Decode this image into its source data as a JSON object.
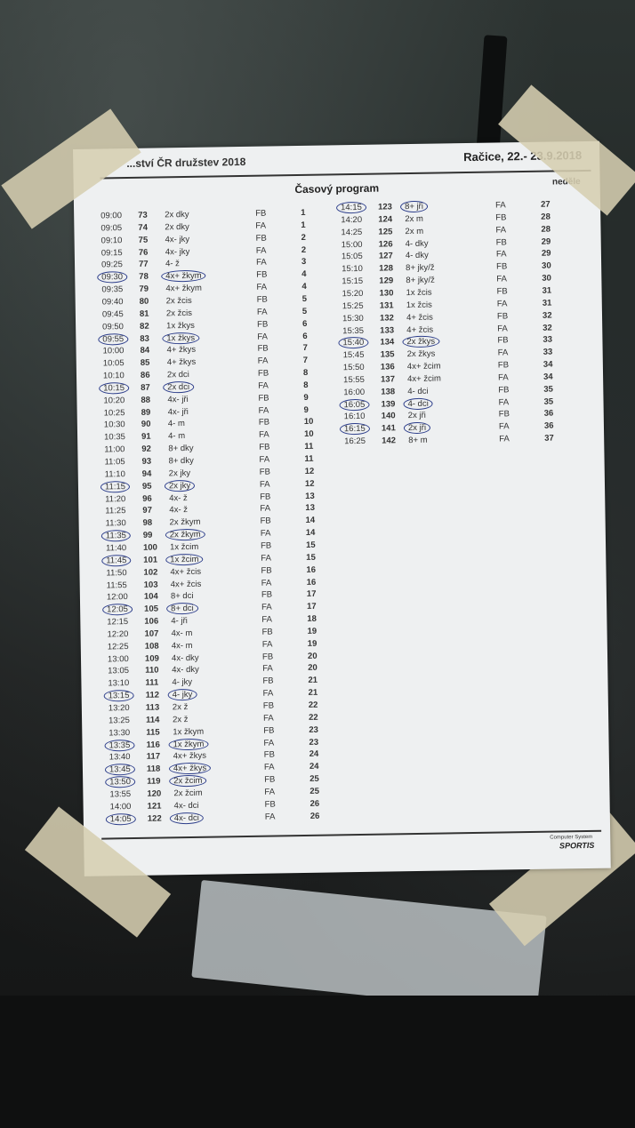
{
  "header": {
    "left": "...ství ČR družstev 2018",
    "right": "Račice, 22.- 23.9.2018"
  },
  "title": "Časový program",
  "day": "neděle",
  "footer": {
    "line1": "Computer System",
    "logo": "SPORTIS"
  },
  "mark_color": "#2c3d8a",
  "left_rows": [
    {
      "time": "09:00",
      "no": "73",
      "event": "2x dky",
      "final": "FB",
      "heat": "1",
      "circled": false
    },
    {
      "time": "09:05",
      "no": "74",
      "event": "2x dky",
      "final": "FA",
      "heat": "1",
      "circled": false
    },
    {
      "time": "09:10",
      "no": "75",
      "event": "4x- jky",
      "final": "FB",
      "heat": "2",
      "circled": false
    },
    {
      "time": "09:15",
      "no": "76",
      "event": "4x- jky",
      "final": "FA",
      "heat": "2",
      "circled": false
    },
    {
      "time": "09:25",
      "no": "77",
      "event": "4- ž",
      "final": "FA",
      "heat": "3",
      "circled": false
    },
    {
      "time": "09:30",
      "no": "78",
      "event": "4x+ žkym",
      "final": "FB",
      "heat": "4",
      "circled": true
    },
    {
      "time": "09:35",
      "no": "79",
      "event": "4x+ žkym",
      "final": "FA",
      "heat": "4",
      "circled": false
    },
    {
      "time": "09:40",
      "no": "80",
      "event": "2x žcis",
      "final": "FB",
      "heat": "5",
      "circled": false
    },
    {
      "time": "09:45",
      "no": "81",
      "event": "2x žcis",
      "final": "FA",
      "heat": "5",
      "circled": false
    },
    {
      "time": "09:50",
      "no": "82",
      "event": "1x žkys",
      "final": "FB",
      "heat": "6",
      "circled": false
    },
    {
      "time": "09:55",
      "no": "83",
      "event": "1x žkys",
      "final": "FA",
      "heat": "6",
      "circled": true
    },
    {
      "time": "10:00",
      "no": "84",
      "event": "4+ žkys",
      "final": "FB",
      "heat": "7",
      "circled": false
    },
    {
      "time": "10:05",
      "no": "85",
      "event": "4+ žkys",
      "final": "FA",
      "heat": "7",
      "circled": false
    },
    {
      "time": "10:10",
      "no": "86",
      "event": "2x dci",
      "final": "FB",
      "heat": "8",
      "circled": false
    },
    {
      "time": "10:15",
      "no": "87",
      "event": "2x dci",
      "final": "FA",
      "heat": "8",
      "circled": true
    },
    {
      "time": "10:20",
      "no": "88",
      "event": "4x- jři",
      "final": "FB",
      "heat": "9",
      "circled": false
    },
    {
      "time": "10:25",
      "no": "89",
      "event": "4x- jři",
      "final": "FA",
      "heat": "9",
      "circled": false
    },
    {
      "time": "10:30",
      "no": "90",
      "event": "4- m",
      "final": "FB",
      "heat": "10",
      "circled": false
    },
    {
      "time": "10:35",
      "no": "91",
      "event": "4- m",
      "final": "FA",
      "heat": "10",
      "circled": false
    },
    {
      "time": "11:00",
      "no": "92",
      "event": "8+ dky",
      "final": "FB",
      "heat": "11",
      "circled": false
    },
    {
      "time": "11:05",
      "no": "93",
      "event": "8+ dky",
      "final": "FA",
      "heat": "11",
      "circled": false
    },
    {
      "time": "11:10",
      "no": "94",
      "event": "2x jky",
      "final": "FB",
      "heat": "12",
      "circled": false
    },
    {
      "time": "11:15",
      "no": "95",
      "event": "2x jky",
      "final": "FA",
      "heat": "12",
      "circled": true
    },
    {
      "time": "11:20",
      "no": "96",
      "event": "4x- ž",
      "final": "FB",
      "heat": "13",
      "circled": false
    },
    {
      "time": "11:25",
      "no": "97",
      "event": "4x- ž",
      "final": "FA",
      "heat": "13",
      "circled": false
    },
    {
      "time": "11:30",
      "no": "98",
      "event": "2x žkym",
      "final": "FB",
      "heat": "14",
      "circled": false
    },
    {
      "time": "11:35",
      "no": "99",
      "event": "2x žkym",
      "final": "FA",
      "heat": "14",
      "circled": true
    },
    {
      "time": "11:40",
      "no": "100",
      "event": "1x žcim",
      "final": "FB",
      "heat": "15",
      "circled": false
    },
    {
      "time": "11:45",
      "no": "101",
      "event": "1x žcim",
      "final": "FA",
      "heat": "15",
      "circled": true
    },
    {
      "time": "11:50",
      "no": "102",
      "event": "4x+ žcis",
      "final": "FB",
      "heat": "16",
      "circled": false
    },
    {
      "time": "11:55",
      "no": "103",
      "event": "4x+ žcis",
      "final": "FA",
      "heat": "16",
      "circled": false
    },
    {
      "time": "12:00",
      "no": "104",
      "event": "8+ dci",
      "final": "FB",
      "heat": "17",
      "circled": false
    },
    {
      "time": "12:05",
      "no": "105",
      "event": "8+ dci",
      "final": "FA",
      "heat": "17",
      "circled": true
    },
    {
      "time": "12:15",
      "no": "106",
      "event": "4- jři",
      "final": "FA",
      "heat": "18",
      "circled": false
    },
    {
      "time": "12:20",
      "no": "107",
      "event": "4x- m",
      "final": "FB",
      "heat": "19",
      "circled": false
    },
    {
      "time": "12:25",
      "no": "108",
      "event": "4x- m",
      "final": "FA",
      "heat": "19",
      "circled": false
    },
    {
      "time": "13:00",
      "no": "109",
      "event": "4x- dky",
      "final": "FB",
      "heat": "20",
      "circled": false
    },
    {
      "time": "13:05",
      "no": "110",
      "event": "4x- dky",
      "final": "FA",
      "heat": "20",
      "circled": false
    },
    {
      "time": "13:10",
      "no": "111",
      "event": "4- jky",
      "final": "FB",
      "heat": "21",
      "circled": false
    },
    {
      "time": "13:15",
      "no": "112",
      "event": "4- jky",
      "final": "FA",
      "heat": "21",
      "circled": true
    },
    {
      "time": "13:20",
      "no": "113",
      "event": "2x ž",
      "final": "FB",
      "heat": "22",
      "circled": false
    },
    {
      "time": "13:25",
      "no": "114",
      "event": "2x ž",
      "final": "FA",
      "heat": "22",
      "circled": false
    },
    {
      "time": "13:30",
      "no": "115",
      "event": "1x žkym",
      "final": "FB",
      "heat": "23",
      "circled": false
    },
    {
      "time": "13:35",
      "no": "116",
      "event": "1x žkym",
      "final": "FA",
      "heat": "23",
      "circled": true
    },
    {
      "time": "13:40",
      "no": "117",
      "event": "4x+ žkys",
      "final": "FB",
      "heat": "24",
      "circled": false
    },
    {
      "time": "13:45",
      "no": "118",
      "event": "4x+ žkys",
      "final": "FA",
      "heat": "24",
      "circled": true
    },
    {
      "time": "13:50",
      "no": "119",
      "event": "2x žcim",
      "final": "FB",
      "heat": "25",
      "circled": true
    },
    {
      "time": "13:55",
      "no": "120",
      "event": "2x žcim",
      "final": "FA",
      "heat": "25",
      "circled": false
    },
    {
      "time": "14:00",
      "no": "121",
      "event": "4x- dci",
      "final": "FB",
      "heat": "26",
      "circled": false
    },
    {
      "time": "14:05",
      "no": "122",
      "event": "4x- dci",
      "final": "FA",
      "heat": "26",
      "circled": true
    }
  ],
  "right_rows": [
    {
      "time": "14:15",
      "no": "123",
      "event": "8+ jři",
      "final": "FA",
      "heat": "27",
      "circled": true
    },
    {
      "time": "14:20",
      "no": "124",
      "event": "2x m",
      "final": "FB",
      "heat": "28",
      "circled": false
    },
    {
      "time": "14:25",
      "no": "125",
      "event": "2x m",
      "final": "FA",
      "heat": "28",
      "circled": false
    },
    {
      "time": "15:00",
      "no": "126",
      "event": "4- dky",
      "final": "FB",
      "heat": "29",
      "circled": false
    },
    {
      "time": "15:05",
      "no": "127",
      "event": "4- dky",
      "final": "FA",
      "heat": "29",
      "circled": false
    },
    {
      "time": "15:10",
      "no": "128",
      "event": "8+ jky/ž",
      "final": "FB",
      "heat": "30",
      "circled": false
    },
    {
      "time": "15:15",
      "no": "129",
      "event": "8+ jky/ž",
      "final": "FA",
      "heat": "30",
      "circled": false
    },
    {
      "time": "15:20",
      "no": "130",
      "event": "1x žcis",
      "final": "FB",
      "heat": "31",
      "circled": false
    },
    {
      "time": "15:25",
      "no": "131",
      "event": "1x žcis",
      "final": "FA",
      "heat": "31",
      "circled": false
    },
    {
      "time": "15:30",
      "no": "132",
      "event": "4+ žcis",
      "final": "FB",
      "heat": "32",
      "circled": false
    },
    {
      "time": "15:35",
      "no": "133",
      "event": "4+ žcis",
      "final": "FA",
      "heat": "32",
      "circled": false
    },
    {
      "time": "15:40",
      "no": "134",
      "event": "2x žkys",
      "final": "FB",
      "heat": "33",
      "circled": true
    },
    {
      "time": "15:45",
      "no": "135",
      "event": "2x žkys",
      "final": "FA",
      "heat": "33",
      "circled": false
    },
    {
      "time": "15:50",
      "no": "136",
      "event": "4x+ žcim",
      "final": "FB",
      "heat": "34",
      "circled": false
    },
    {
      "time": "15:55",
      "no": "137",
      "event": "4x+ žcim",
      "final": "FA",
      "heat": "34",
      "circled": false
    },
    {
      "time": "16:00",
      "no": "138",
      "event": "4- dci",
      "final": "FB",
      "heat": "35",
      "circled": false
    },
    {
      "time": "16:05",
      "no": "139",
      "event": "4- dci",
      "final": "FA",
      "heat": "35",
      "circled": true
    },
    {
      "time": "16:10",
      "no": "140",
      "event": "2x jři",
      "final": "FB",
      "heat": "36",
      "circled": false
    },
    {
      "time": "16:15",
      "no": "141",
      "event": "2x jři",
      "final": "FA",
      "heat": "36",
      "circled": true
    },
    {
      "time": "16:25",
      "no": "142",
      "event": "8+ m",
      "final": "FA",
      "heat": "37",
      "circled": false
    }
  ]
}
